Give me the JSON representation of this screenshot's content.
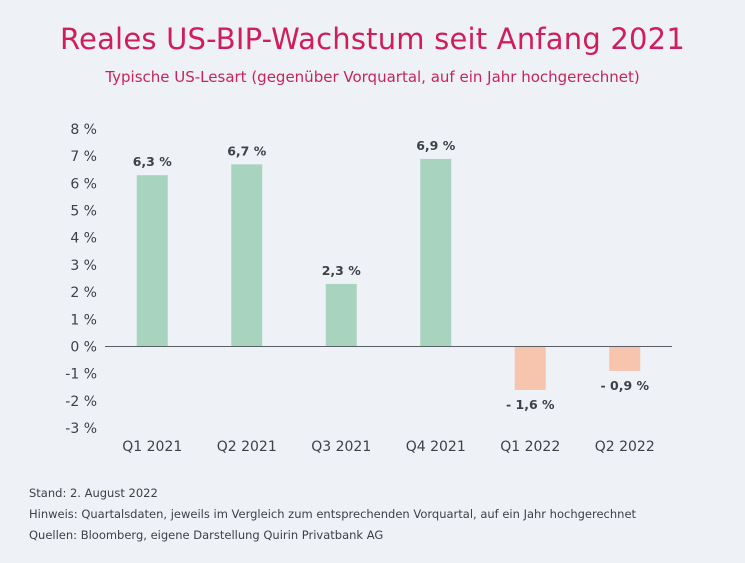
{
  "header": {
    "title": "Reales US-BIP-Wachstum seit Anfang 2021",
    "subtitle": "Typische US-Lesart (gegenüber Vorquartal, auf ein Jahr hochgerechnet)"
  },
  "colors": {
    "title": "#d01e5b",
    "positive_bar": "#a8d3be",
    "negative_bar": "#f7c4ad",
    "axis": "#5a5f66",
    "text": "#3d4148"
  },
  "chart_data": {
    "type": "bar",
    "categories": [
      "Q1 2021",
      "Q2 2021",
      "Q3 2021",
      "Q4 2021",
      "Q1 2022",
      "Q2 2022"
    ],
    "values": [
      6.3,
      6.7,
      2.3,
      6.9,
      -1.6,
      -0.9
    ],
    "data_labels": [
      "6,3 %",
      "6,7 %",
      "2,3 %",
      "6,9 %",
      "- 1,6 %",
      "- 0,9 %"
    ],
    "ylim": [
      -3,
      8
    ],
    "yticks": [
      8,
      7,
      6,
      5,
      4,
      3,
      2,
      1,
      0,
      -1,
      -2,
      -3
    ],
    "ytick_labels": [
      "8 %",
      "7 %",
      "6 %",
      "5 %",
      "4 %",
      "3 %",
      "2 %",
      "1 %",
      "0 %",
      "-1 %",
      "-2 %",
      "-3 %"
    ],
    "grid": false,
    "legend": "none"
  },
  "footnotes": {
    "stand": "Stand: 2. August 2022",
    "hinweis": "Hinweis: Quartalsdaten, jeweils im Vergleich zum entsprechenden Vorquartal, auf ein Jahr hochgerechnet",
    "quellen": "Quellen: Bloomberg, eigene Darstellung Quirin Privatbank AG"
  }
}
